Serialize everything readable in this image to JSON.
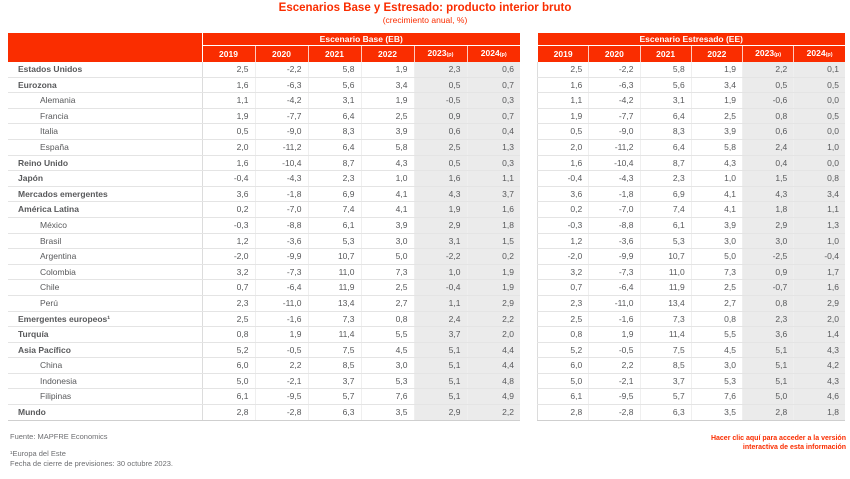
{
  "title": "Escenarios Base y Estresado: producto interior bruto",
  "subtitle": "(crecimiento anual, %)",
  "colors": {
    "accent": "#fa2d00",
    "text": "#58595b",
    "shaded_column": "#ebebeb",
    "grid": "#e4e4e4",
    "footer_text": "#6d6e71"
  },
  "chart_data": {
    "type": "table",
    "title": "Escenarios Base y Estresado: producto interior bruto",
    "subtitle": "(crecimiento anual, %)",
    "column_groups": [
      {
        "label": "Escenario Base (EB)"
      },
      {
        "label": "Escenario Estresado (EE)"
      }
    ],
    "years": [
      "2019",
      "2020",
      "2021",
      "2022",
      "2023(p)",
      "2024(p)"
    ],
    "shaded_year_columns": [
      4,
      5
    ],
    "rows": [
      {
        "label": "Estados Unidos",
        "indent": false,
        "base": [
          "2,5",
          "-2,2",
          "5,8",
          "1,9",
          "2,3",
          "0,6"
        ],
        "stress": [
          "2,5",
          "-2,2",
          "5,8",
          "1,9",
          "2,2",
          "0,1"
        ]
      },
      {
        "label": "Eurozona",
        "indent": false,
        "base": [
          "1,6",
          "-6,3",
          "5,6",
          "3,4",
          "0,5",
          "0,7"
        ],
        "stress": [
          "1,6",
          "-6,3",
          "5,6",
          "3,4",
          "0,5",
          "0,5"
        ]
      },
      {
        "label": "Alemania",
        "indent": true,
        "base": [
          "1,1",
          "-4,2",
          "3,1",
          "1,9",
          "-0,5",
          "0,3"
        ],
        "stress": [
          "1,1",
          "-4,2",
          "3,1",
          "1,9",
          "-0,6",
          "0,0"
        ]
      },
      {
        "label": "Francia",
        "indent": true,
        "base": [
          "1,9",
          "-7,7",
          "6,4",
          "2,5",
          "0,9",
          "0,7"
        ],
        "stress": [
          "1,9",
          "-7,7",
          "6,4",
          "2,5",
          "0,8",
          "0,5"
        ]
      },
      {
        "label": "Italia",
        "indent": true,
        "base": [
          "0,5",
          "-9,0",
          "8,3",
          "3,9",
          "0,6",
          "0,4"
        ],
        "stress": [
          "0,5",
          "-9,0",
          "8,3",
          "3,9",
          "0,6",
          "0,0"
        ]
      },
      {
        "label": "España",
        "indent": true,
        "base": [
          "2,0",
          "-11,2",
          "6,4",
          "5,8",
          "2,5",
          "1,3"
        ],
        "stress": [
          "2,0",
          "-11,2",
          "6,4",
          "5,8",
          "2,4",
          "1,0"
        ]
      },
      {
        "label": "Reino Unido",
        "indent": false,
        "base": [
          "1,6",
          "-10,4",
          "8,7",
          "4,3",
          "0,5",
          "0,3"
        ],
        "stress": [
          "1,6",
          "-10,4",
          "8,7",
          "4,3",
          "0,4",
          "0,0"
        ]
      },
      {
        "label": "Japón",
        "indent": false,
        "base": [
          "-0,4",
          "-4,3",
          "2,3",
          "1,0",
          "1,6",
          "1,1"
        ],
        "stress": [
          "-0,4",
          "-4,3",
          "2,3",
          "1,0",
          "1,5",
          "0,8"
        ]
      },
      {
        "label": "Mercados emergentes",
        "indent": false,
        "base": [
          "3,6",
          "-1,8",
          "6,9",
          "4,1",
          "4,3",
          "3,7"
        ],
        "stress": [
          "3,6",
          "-1,8",
          "6,9",
          "4,1",
          "4,3",
          "3,4"
        ]
      },
      {
        "label": "América Latina",
        "indent": false,
        "base": [
          "0,2",
          "-7,0",
          "7,4",
          "4,1",
          "1,9",
          "1,6"
        ],
        "stress": [
          "0,2",
          "-7,0",
          "7,4",
          "4,1",
          "1,8",
          "1,1"
        ]
      },
      {
        "label": "México",
        "indent": true,
        "base": [
          "-0,3",
          "-8,8",
          "6,1",
          "3,9",
          "2,9",
          "1,8"
        ],
        "stress": [
          "-0,3",
          "-8,8",
          "6,1",
          "3,9",
          "2,9",
          "1,3"
        ]
      },
      {
        "label": "Brasil",
        "indent": true,
        "base": [
          "1,2",
          "-3,6",
          "5,3",
          "3,0",
          "3,1",
          "1,5"
        ],
        "stress": [
          "1,2",
          "-3,6",
          "5,3",
          "3,0",
          "3,0",
          "1,0"
        ]
      },
      {
        "label": "Argentina",
        "indent": true,
        "base": [
          "-2,0",
          "-9,9",
          "10,7",
          "5,0",
          "-2,2",
          "0,2"
        ],
        "stress": [
          "-2,0",
          "-9,9",
          "10,7",
          "5,0",
          "-2,5",
          "-0,4"
        ]
      },
      {
        "label": "Colombia",
        "indent": true,
        "base": [
          "3,2",
          "-7,3",
          "11,0",
          "7,3",
          "1,0",
          "1,9"
        ],
        "stress": [
          "3,2",
          "-7,3",
          "11,0",
          "7,3",
          "0,9",
          "1,7"
        ]
      },
      {
        "label": "Chile",
        "indent": true,
        "base": [
          "0,7",
          "-6,4",
          "11,9",
          "2,5",
          "-0,4",
          "1,9"
        ],
        "stress": [
          "0,7",
          "-6,4",
          "11,9",
          "2,5",
          "-0,7",
          "1,6"
        ]
      },
      {
        "label": "Perú",
        "indent": true,
        "base": [
          "2,3",
          "-11,0",
          "13,4",
          "2,7",
          "1,1",
          "2,9"
        ],
        "stress": [
          "2,3",
          "-11,0",
          "13,4",
          "2,7",
          "0,8",
          "2,9"
        ]
      },
      {
        "label": "Emergentes europeos¹",
        "indent": false,
        "base": [
          "2,5",
          "-1,6",
          "7,3",
          "0,8",
          "2,4",
          "2,2"
        ],
        "stress": [
          "2,5",
          "-1,6",
          "7,3",
          "0,8",
          "2,3",
          "2,0"
        ]
      },
      {
        "label": "Turquía",
        "indent": false,
        "base": [
          "0,8",
          "1,9",
          "11,4",
          "5,5",
          "3,7",
          "2,0"
        ],
        "stress": [
          "0,8",
          "1,9",
          "11,4",
          "5,5",
          "3,6",
          "1,4"
        ]
      },
      {
        "label": "Asia Pacífico",
        "indent": false,
        "base": [
          "5,2",
          "-0,5",
          "7,5",
          "4,5",
          "5,1",
          "4,4"
        ],
        "stress": [
          "5,2",
          "-0,5",
          "7,5",
          "4,5",
          "5,1",
          "4,3"
        ]
      },
      {
        "label": "China",
        "indent": true,
        "base": [
          "6,0",
          "2,2",
          "8,5",
          "3,0",
          "5,1",
          "4,4"
        ],
        "stress": [
          "6,0",
          "2,2",
          "8,5",
          "3,0",
          "5,1",
          "4,2"
        ]
      },
      {
        "label": "Indonesia",
        "indent": true,
        "base": [
          "5,0",
          "-2,1",
          "3,7",
          "5,3",
          "5,1",
          "4,8"
        ],
        "stress": [
          "5,0",
          "-2,1",
          "3,7",
          "5,3",
          "5,1",
          "4,3"
        ]
      },
      {
        "label": "Filipinas",
        "indent": true,
        "base": [
          "6,1",
          "-9,5",
          "5,7",
          "7,6",
          "5,1",
          "4,9"
        ],
        "stress": [
          "6,1",
          "-9,5",
          "5,7",
          "7,6",
          "5,0",
          "4,6"
        ]
      },
      {
        "label": "Mundo",
        "indent": false,
        "base": [
          "2,8",
          "-2,8",
          "6,3",
          "3,5",
          "2,9",
          "2,2"
        ],
        "stress": [
          "2,8",
          "-2,8",
          "6,3",
          "3,5",
          "2,8",
          "1,8"
        ]
      }
    ]
  },
  "footer": {
    "source": "Fuente: MAPFRE Economics",
    "footnote": "¹Europa del Este",
    "closing_date": "Fecha de cierre de previsiones: 30 octubre 2023.",
    "link_line1": "Hacer clic aquí para acceder a la versión",
    "link_line2": "interactiva de esta información"
  }
}
